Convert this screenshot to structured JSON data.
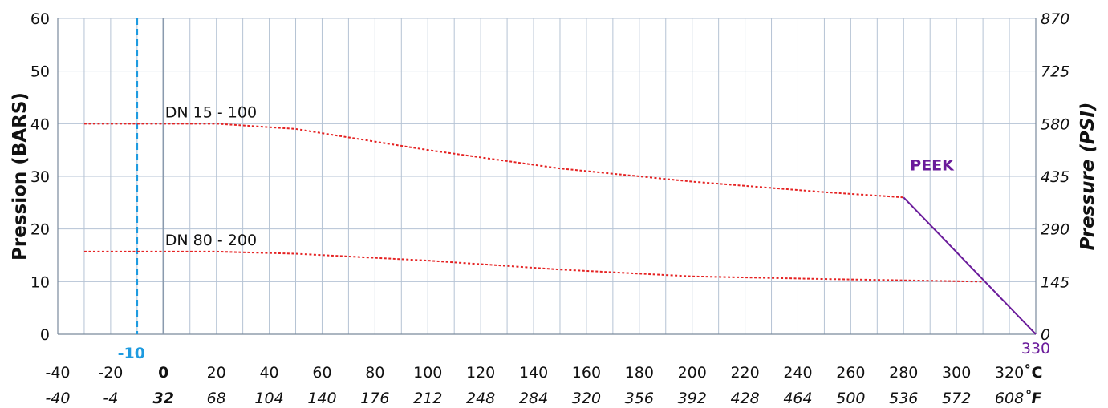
{
  "chart_data": {
    "type": "line",
    "title": "",
    "ylabel_left": "Pression (BARS)",
    "ylabel_right": "Pressure (PSI)",
    "unit_c": "˚C",
    "unit_f": "˚F",
    "xlim": [
      -40,
      330
    ],
    "ylim": [
      0,
      60
    ],
    "grid": true,
    "x_ticks_c": [
      "-40",
      "-20",
      "0",
      "20",
      "40",
      "60",
      "80",
      "100",
      "120",
      "140",
      "160",
      "180",
      "200",
      "220",
      "240",
      "260",
      "280",
      "300",
      "320"
    ],
    "x_ticks_f": [
      "-40",
      "-4",
      "32",
      "68",
      "104",
      "140",
      "176",
      "212",
      "248",
      "284",
      "320",
      "356",
      "392",
      "428",
      "464",
      "500",
      "536",
      "572",
      "608"
    ],
    "y_ticks_left": [
      "0",
      "10",
      "20",
      "30",
      "40",
      "50",
      "60"
    ],
    "y_ticks_right": [
      "0",
      "145",
      "290",
      "435",
      "580",
      "725",
      "870"
    ],
    "series": [
      {
        "name": "DN 15 - 100",
        "color": "#e52222",
        "style": "dotted",
        "points": [
          [
            -30,
            40
          ],
          [
            20,
            40
          ],
          [
            50,
            39
          ],
          [
            100,
            35
          ],
          [
            150,
            31.5
          ],
          [
            200,
            29
          ],
          [
            250,
            27
          ],
          [
            280,
            26
          ]
        ]
      },
      {
        "name": "DN 80 - 200",
        "color": "#e52222",
        "style": "dotted",
        "points": [
          [
            -30,
            15.7
          ],
          [
            20,
            15.7
          ],
          [
            50,
            15.3
          ],
          [
            100,
            14
          ],
          [
            150,
            12.3
          ],
          [
            200,
            11
          ],
          [
            250,
            10.5
          ],
          [
            310,
            10
          ]
        ]
      }
    ],
    "limit_line": {
      "name": "PEEK",
      "color": "#6a1b9a",
      "points": [
        [
          280,
          26
        ],
        [
          330,
          0
        ]
      ],
      "end_label": "330"
    },
    "marker": {
      "x": -10,
      "label": "-10",
      "color": "#1e9be0"
    },
    "zero_line_x": 0
  }
}
